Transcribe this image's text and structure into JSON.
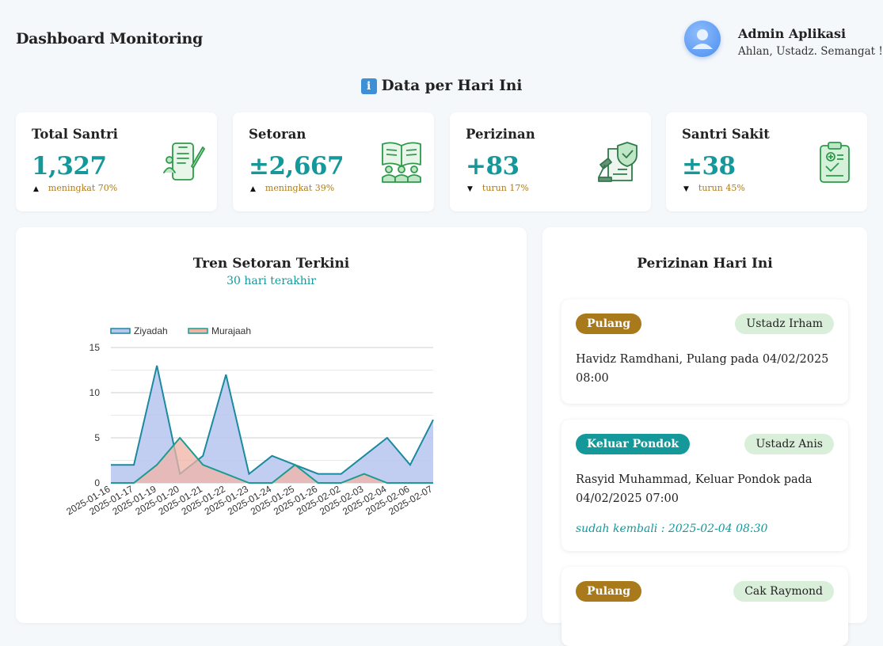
{
  "header": {
    "title": "Dashboard Monitoring",
    "user_name": "Admin Aplikasi",
    "greeting": "Ahlan, Ustadz. Semangat !"
  },
  "section": {
    "icon": "info-icon",
    "title": "Data per Hari Ini"
  },
  "stats": [
    {
      "title": "Total Santri",
      "value": "1,327",
      "trend": "meningkat 70%",
      "direction": "up",
      "icon": "student-writing-icon"
    },
    {
      "title": "Setoran",
      "value": "±2,667",
      "trend": "meningkat 39%",
      "direction": "up",
      "icon": "group-reading-icon"
    },
    {
      "title": "Perizinan",
      "value": "+83",
      "trend": "turun 17%",
      "direction": "down",
      "icon": "permit-document-icon"
    },
    {
      "title": "Santri Sakit",
      "value": "±38",
      "trend": "turun 45%",
      "direction": "down",
      "icon": "medical-clipboard-icon"
    }
  ],
  "colors": {
    "accent": "#14989a",
    "trend": "#b07b16",
    "pulang": "#a87a1c",
    "keluar": "#14989a",
    "icon_green": "#2e9a4a"
  },
  "chart": {
    "title": "Tren Setoran Terkini",
    "subtitle": "30 hari terakhir"
  },
  "chart_data": {
    "type": "area",
    "title": "Tren Setoran Terkini",
    "subtitle": "30 hari terakhir",
    "x": [
      "2025-01-16",
      "2025-01-17",
      "2025-01-19",
      "2025-01-20",
      "2025-01-21",
      "2025-01-22",
      "2025-01-23",
      "2025-01-24",
      "2025-01-25",
      "2025-01-26",
      "2025-02-02",
      "2025-02-03",
      "2025-02-04",
      "2025-02-06",
      "2025-02-07"
    ],
    "series": [
      {
        "name": "Ziyadah",
        "color": "#1a8a9e",
        "fill": "#b7c6ee",
        "values": [
          2,
          2,
          13,
          1,
          3,
          12,
          1,
          3,
          2,
          1,
          1,
          3,
          5,
          2,
          7
        ]
      },
      {
        "name": "Murajaah",
        "color": "#1a9c90",
        "fill": "#f0b3a4",
        "values": [
          0,
          0,
          2,
          5,
          2,
          1,
          0,
          0,
          2,
          0,
          0,
          1,
          0,
          0,
          0
        ]
      }
    ],
    "x_ticks": [
      "2025-01-16",
      "2025-01-17",
      "2025-01-19",
      "2025-01-20",
      "2025-01-21",
      "2025-01-22",
      "2025-01-23",
      "2025-01-24",
      "2025-01-25",
      "2025-01-26",
      "2025-02-02",
      "2025-02-03",
      "2025-02-04",
      "2025-02-06",
      "2025-02-07"
    ],
    "y_ticks": [
      0,
      5,
      10,
      15
    ],
    "ylim": [
      0,
      15
    ],
    "grid": true,
    "legend": "top-left"
  },
  "permissions": {
    "title": "Perizinan Hari Ini",
    "items": [
      {
        "type": "Pulang",
        "type_color": "#a87a1c",
        "teacher": "Ustadz Irham",
        "desc": "Havidz Ramdhani, Pulang pada 04/02/2025 08:00",
        "returned": ""
      },
      {
        "type": "Keluar Pondok",
        "type_color": "#14989a",
        "teacher": "Ustadz Anis",
        "desc": "Rasyid Muhammad, Keluar Pondok pada 04/02/2025 07:00",
        "returned": "sudah kembali : 2025-02-04 08:30"
      },
      {
        "type": "Pulang",
        "type_color": "#a87a1c",
        "teacher": "Cak Raymond",
        "desc": "",
        "returned": ""
      }
    ]
  }
}
